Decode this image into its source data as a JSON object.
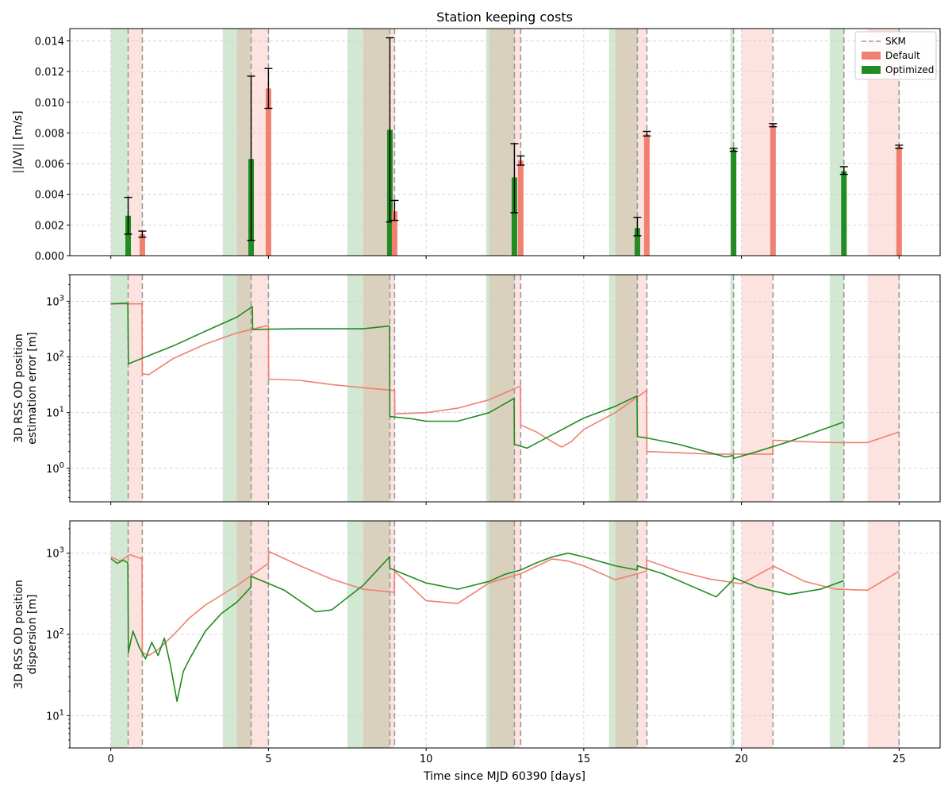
{
  "title": "Station keeping costs",
  "xlabel": "Time since MJD 60390 [days]",
  "colors": {
    "default": "#f08070",
    "optimized": "#228B22",
    "skm": "#999999",
    "grid": "#d0d0d0"
  },
  "chart_data": [
    {
      "type": "bar",
      "ylabel": "||ΔV|| [m/s]",
      "xlim": [
        -1.3,
        26.3
      ],
      "ylim": [
        0,
        0.0148
      ],
      "y_ticks": [
        0.0,
        0.002,
        0.004,
        0.006,
        0.008,
        0.01,
        0.012,
        0.014
      ],
      "y_tick_labels": [
        "0.000",
        "0.002",
        "0.004",
        "0.006",
        "0.008",
        "0.010",
        "0.012",
        "0.014"
      ],
      "grid": true,
      "legend": {
        "position": "top-right",
        "entries": [
          "SKM",
          "Default",
          "Optimized"
        ]
      },
      "skm_times": [
        0.55,
        1.0,
        4.45,
        5.0,
        8.85,
        9.0,
        12.8,
        13.0,
        16.7,
        17.0,
        19.75,
        21.0,
        23.25,
        25.0
      ],
      "series": [
        {
          "name": "Optimized",
          "x": [
            0.55,
            4.45,
            8.85,
            12.8,
            16.7,
            19.75,
            23.25
          ],
          "values": [
            0.0026,
            0.0063,
            0.0082,
            0.0051,
            0.0018,
            0.0069,
            0.0055
          ],
          "err_low": [
            0.0014,
            0.001,
            0.0022,
            0.0028,
            0.0013,
            0.0068,
            0.0053
          ],
          "err_high": [
            0.0038,
            0.0117,
            0.0142,
            0.0073,
            0.0025,
            0.007,
            0.0058
          ]
        },
        {
          "name": "Default",
          "x": [
            1.0,
            5.0,
            9.0,
            13.0,
            17.0,
            21.0,
            25.0
          ],
          "values": [
            0.0014,
            0.0109,
            0.0029,
            0.0062,
            0.0079,
            0.0085,
            0.0071
          ],
          "err_low": [
            0.0012,
            0.0096,
            0.0023,
            0.0059,
            0.0078,
            0.0084,
            0.007
          ],
          "err_high": [
            0.0016,
            0.0122,
            0.0036,
            0.0065,
            0.0081,
            0.0086,
            0.0072
          ]
        }
      ]
    },
    {
      "type": "line",
      "ylabel": "3D RSS OD position estimation error [m]",
      "ylabel_lines": [
        "3D RSS OD position",
        "estimation error [m]"
      ],
      "yscale": "log",
      "xlim": [
        -1.3,
        26.3
      ],
      "ylim": [
        0.25,
        3000
      ],
      "y_ticks": [
        1,
        10,
        100,
        1000
      ],
      "y_tick_exponents": [
        "0",
        "1",
        "2",
        "3"
      ],
      "grid": true,
      "series": [
        {
          "name": "Default",
          "points": [
            [
              0,
              900
            ],
            [
              0.99,
              900
            ],
            [
              1.0,
              50
            ],
            [
              1.2,
              48
            ],
            [
              1.5,
              62
            ],
            [
              2,
              95
            ],
            [
              3,
              170
            ],
            [
              4,
              270
            ],
            [
              5,
              370
            ],
            [
              5.01,
              40
            ],
            [
              6,
              38
            ],
            [
              7,
              32
            ],
            [
              8,
              28
            ],
            [
              9,
              25
            ],
            [
              9.01,
              9.5
            ],
            [
              10,
              10
            ],
            [
              11,
              12
            ],
            [
              12,
              17
            ],
            [
              12.99,
              30
            ],
            [
              13.0,
              6
            ],
            [
              13.5,
              4.5
            ],
            [
              14,
              3.0
            ],
            [
              14.3,
              2.4
            ],
            [
              14.6,
              3.0
            ],
            [
              15,
              5
            ],
            [
              16,
              10
            ],
            [
              16.99,
              25
            ],
            [
              17.0,
              2.0
            ],
            [
              18,
              1.9
            ],
            [
              19,
              1.8
            ],
            [
              20,
              1.8
            ],
            [
              20.99,
              1.8
            ],
            [
              21.0,
              3.2
            ],
            [
              22,
              3.0
            ],
            [
              23,
              2.9
            ],
            [
              24,
              2.9
            ],
            [
              25,
              4.5
            ]
          ]
        },
        {
          "name": "Optimized",
          "points": [
            [
              0,
              900
            ],
            [
              0.54,
              930
            ],
            [
              0.56,
              75
            ],
            [
              1,
              95
            ],
            [
              2,
              160
            ],
            [
              3,
              290
            ],
            [
              4,
              520
            ],
            [
              4.49,
              800
            ],
            [
              4.5,
              310
            ],
            [
              5,
              315
            ],
            [
              6,
              320
            ],
            [
              7,
              320
            ],
            [
              8,
              320
            ],
            [
              8.84,
              360
            ],
            [
              8.85,
              8.5
            ],
            [
              9.5,
              7.8
            ],
            [
              10,
              7.0
            ],
            [
              11,
              7.0
            ],
            [
              12,
              10
            ],
            [
              12.79,
              18
            ],
            [
              12.8,
              2.7
            ],
            [
              13.2,
              2.3
            ],
            [
              14,
              4
            ],
            [
              15,
              8
            ],
            [
              16,
              13
            ],
            [
              16.69,
              20
            ],
            [
              16.7,
              3.7
            ],
            [
              17,
              3.5
            ],
            [
              18,
              2.7
            ],
            [
              19,
              1.9
            ],
            [
              19.5,
              1.6
            ],
            [
              19.74,
              1.7
            ],
            [
              19.75,
              1.5
            ],
            [
              20.5,
              2.0
            ],
            [
              21.5,
              3.0
            ],
            [
              22.5,
              4.8
            ],
            [
              23.25,
              6.8
            ]
          ]
        }
      ]
    },
    {
      "type": "line",
      "ylabel": "3D RSS OD position dispersion [m]",
      "ylabel_lines": [
        "3D RSS OD position",
        "dispersion [m]"
      ],
      "yscale": "log",
      "xlim": [
        -1.3,
        26.3
      ],
      "ylim": [
        4,
        2500
      ],
      "y_ticks": [
        10,
        100,
        1000
      ],
      "y_tick_exponents": [
        "1",
        "2",
        "3"
      ],
      "grid": true,
      "series": [
        {
          "name": "Default",
          "points": [
            [
              0,
              900
            ],
            [
              0.3,
              800
            ],
            [
              0.6,
              960
            ],
            [
              0.99,
              850
            ],
            [
              1.0,
              60
            ],
            [
              1.2,
              55
            ],
            [
              1.5,
              65
            ],
            [
              2,
              100
            ],
            [
              2.5,
              160
            ],
            [
              3,
              230
            ],
            [
              4,
              400
            ],
            [
              5,
              750
            ],
            [
              5.01,
              1050
            ],
            [
              6,
              700
            ],
            [
              7,
              480
            ],
            [
              8,
              360
            ],
            [
              8.99,
              330
            ],
            [
              9.0,
              600
            ],
            [
              10,
              260
            ],
            [
              11,
              240
            ],
            [
              12,
              430
            ],
            [
              13,
              560
            ],
            [
              14,
              850
            ],
            [
              14.5,
              800
            ],
            [
              15,
              700
            ],
            [
              16,
              470
            ],
            [
              16.99,
              600
            ],
            [
              17.0,
              820
            ],
            [
              18,
              600
            ],
            [
              19,
              480
            ],
            [
              20,
              420
            ],
            [
              20.99,
              680
            ],
            [
              21.0,
              700
            ],
            [
              22,
              450
            ],
            [
              23,
              360
            ],
            [
              24,
              350
            ],
            [
              25,
              600
            ]
          ]
        },
        {
          "name": "Optimized",
          "points": [
            [
              0,
              860
            ],
            [
              0.2,
              750
            ],
            [
              0.4,
              820
            ],
            [
              0.54,
              760
            ],
            [
              0.56,
              60
            ],
            [
              0.7,
              110
            ],
            [
              0.9,
              70
            ],
            [
              1.1,
              50
            ],
            [
              1.3,
              80
            ],
            [
              1.5,
              55
            ],
            [
              1.7,
              90
            ],
            [
              1.9,
              40
            ],
            [
              2.1,
              15
            ],
            [
              2.3,
              35
            ],
            [
              2.5,
              50
            ],
            [
              3,
              110
            ],
            [
              3.5,
              180
            ],
            [
              4,
              250
            ],
            [
              4.44,
              380
            ],
            [
              4.45,
              520
            ],
            [
              5.5,
              350
            ],
            [
              6.5,
              190
            ],
            [
              7,
              200
            ],
            [
              8,
              400
            ],
            [
              8.84,
              900
            ],
            [
              8.85,
              650
            ],
            [
              10,
              430
            ],
            [
              11,
              360
            ],
            [
              12,
              450
            ],
            [
              12.5,
              550
            ],
            [
              13,
              620
            ],
            [
              13.5,
              760
            ],
            [
              14,
              900
            ],
            [
              14.5,
              1000
            ],
            [
              15,
              900
            ],
            [
              16,
              700
            ],
            [
              16.69,
              620
            ],
            [
              16.7,
              700
            ],
            [
              17.5,
              560
            ],
            [
              18.5,
              380
            ],
            [
              19.2,
              290
            ],
            [
              19.74,
              470
            ],
            [
              19.75,
              500
            ],
            [
              20.5,
              380
            ],
            [
              21.5,
              310
            ],
            [
              22.5,
              360
            ],
            [
              23.25,
              460
            ]
          ]
        }
      ]
    }
  ]
}
